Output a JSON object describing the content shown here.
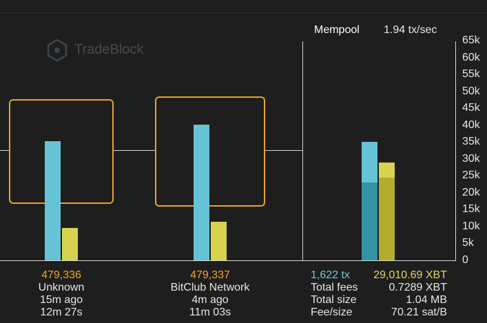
{
  "watermark": {
    "text": "TradeBlock"
  },
  "blocks": [
    {
      "height": "479,336",
      "pool": "Unknown",
      "age": "15m ago",
      "interval": "12m 27s",
      "tx_count": 35200,
      "size_level": 9500
    },
    {
      "height": "479,337",
      "pool": "BitClub Network",
      "age": "4m ago",
      "interval": "11m 03s",
      "tx_count": 40200,
      "size_level": 11500
    }
  ],
  "mempool": {
    "title": "Mempool",
    "rate": "1.94 tx/sec",
    "tx_count": "1,622 tx",
    "xbt": "29,010.69 XBT",
    "stats": [
      {
        "key": "Total fees",
        "value": "0.7289 XBT"
      },
      {
        "key": "Total size",
        "value": "1.04 MB"
      },
      {
        "key": "Fee/size",
        "value": "70.21 sat/B"
      }
    ],
    "bars": {
      "tx_total": 35000,
      "tx_confirmed": 23000,
      "fee_total": 29000,
      "fee_confirmed": 24500
    }
  },
  "axis": {
    "ticks": [
      "65k",
      "60k",
      "55k",
      "50k",
      "45k",
      "40k",
      "35k",
      "30k",
      "25k",
      "20k",
      "15k",
      "10k",
      "5k",
      "0"
    ],
    "max": 65000
  },
  "colors": {
    "tx": "#66c3d6",
    "tx_dark": "#3294a6",
    "fee": "#d7d34e",
    "fee_dark": "#b2ad2d",
    "accent": "#f0a32b"
  }
}
